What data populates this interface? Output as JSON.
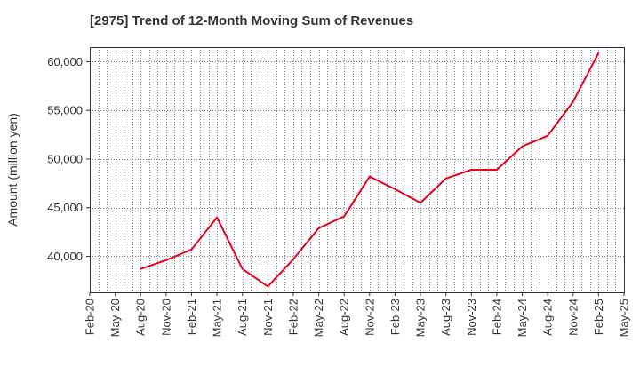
{
  "chart_data": {
    "type": "line",
    "title": "[2975]  Trend of 12-Month Moving Sum of Revenues",
    "ylabel": "Amount (million yen)",
    "xlabel": "",
    "x_tick_labels": [
      "Feb-20",
      "May-20",
      "Aug-20",
      "Nov-20",
      "Feb-21",
      "May-21",
      "Aug-21",
      "Nov-21",
      "Feb-22",
      "May-22",
      "Aug-22",
      "Nov-22",
      "Feb-23",
      "May-23",
      "Aug-23",
      "Nov-23",
      "Feb-24",
      "May-24",
      "Aug-24",
      "Nov-24",
      "Feb-25",
      "May-25"
    ],
    "y_ticks": [
      40000,
      45000,
      50000,
      55000,
      60000
    ],
    "y_tick_labels": [
      "40,000",
      "45,000",
      "50,000",
      "55,000",
      "60,000"
    ],
    "ylim": [
      36300,
      61500
    ],
    "grid": true,
    "series": [
      {
        "color": "#e8001c",
        "x": [
          "Aug-20",
          "Nov-20",
          "Feb-21",
          "May-21",
          "Aug-21",
          "Nov-21",
          "Feb-22",
          "May-22",
          "Aug-22",
          "Nov-22",
          "Feb-23",
          "May-23",
          "Aug-23",
          "Nov-23",
          "Feb-24",
          "May-24",
          "Aug-24",
          "Nov-24",
          "Feb-25"
        ],
        "values": [
          38700,
          39600,
          40700,
          44000,
          38700,
          36900,
          39700,
          42900,
          44100,
          48200,
          46900,
          45500,
          48000,
          48900,
          48900,
          51300,
          52400,
          55900,
          60900
        ]
      }
    ]
  }
}
